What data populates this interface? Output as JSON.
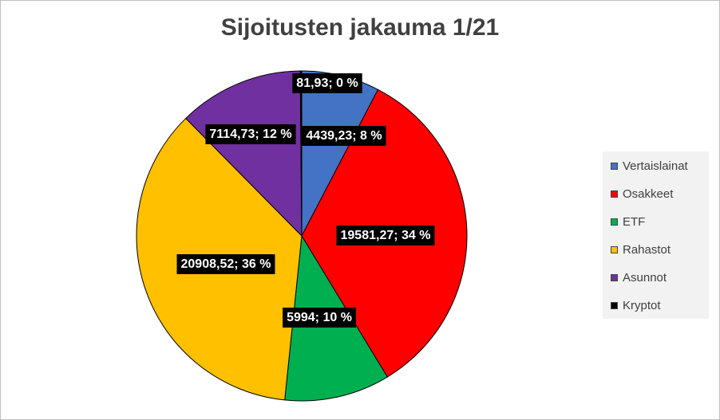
{
  "chart_data": {
    "type": "pie",
    "title": "Sijoitusten jakauma 1/21",
    "slices": [
      {
        "name": "Vertaislainat",
        "value": 4439.23,
        "value_label": "4439,23",
        "percent_label": "8 %",
        "color": "#4472C4"
      },
      {
        "name": "Osakkeet",
        "value": 19581.27,
        "value_label": "19581,27",
        "percent_label": "34 %",
        "color": "#FF0000"
      },
      {
        "name": "ETF",
        "value": 5994,
        "value_label": "5994",
        "percent_label": "10 %",
        "color": "#00B050"
      },
      {
        "name": "Rahastot",
        "value": 20908.52,
        "value_label": "20908,52",
        "percent_label": "36 %",
        "color": "#FFC000"
      },
      {
        "name": "Asunnot",
        "value": 7114.73,
        "value_label": "7114,73",
        "percent_label": "12 %",
        "color": "#7030A0"
      },
      {
        "name": "Kryptot",
        "value": 81.93,
        "value_label": "81,93",
        "percent_label": "0 %",
        "color": "#000000"
      }
    ],
    "data_labels": [
      "4439,23; 8 %",
      "19581,27; 34 %",
      "5994; 10 %",
      "20908,52; 36 %",
      "7114,73; 12 %",
      "81,93; 0 %"
    ],
    "legend": {
      "placement": "right",
      "entries": [
        "Vertaislainat",
        "Osakkeet",
        "ETF",
        "Rahastot",
        "Asunnot",
        "Kryptot"
      ]
    }
  }
}
